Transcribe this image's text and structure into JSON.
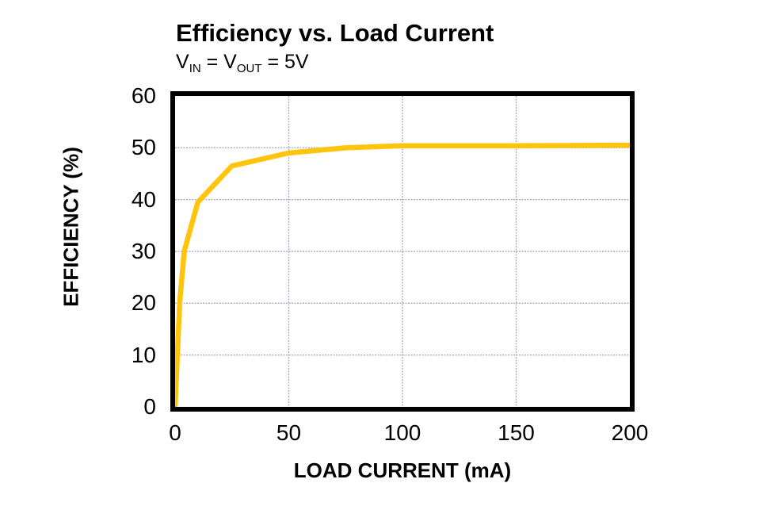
{
  "header": {
    "title": "Efficiency vs. Load Current",
    "subtitle_parts": {
      "v1": "V",
      "sub1": "IN",
      "eq1": " = V",
      "sub2": "OUT",
      "eq2": " = 5V"
    }
  },
  "colors": {
    "curve": "#FFC40C",
    "grid": "#A9AAC8",
    "frame": "#000000",
    "background": "#FFFFFF",
    "text": "#000000"
  },
  "chart_data": {
    "type": "line",
    "title": "Efficiency vs. Load Current",
    "subtitle": "VIN = VOUT = 5V",
    "xlabel": "LOAD CURRENT (mA)",
    "ylabel": "EFFICIENCY (%)",
    "xlim": [
      0,
      200
    ],
    "ylim": [
      0,
      60
    ],
    "x_ticks": [
      0,
      50,
      100,
      150,
      200
    ],
    "y_ticks": [
      0,
      10,
      20,
      30,
      40,
      50,
      60
    ],
    "grid": true,
    "legend": "none",
    "series": [
      {
        "name": "efficiency",
        "x": [
          0,
          1,
          2,
          4,
          10,
          25,
          50,
          75,
          100,
          150,
          200
        ],
        "y": [
          0,
          10,
          20,
          30,
          39.5,
          46.5,
          49,
          50,
          50.4,
          50.4,
          50.5
        ]
      }
    ]
  }
}
